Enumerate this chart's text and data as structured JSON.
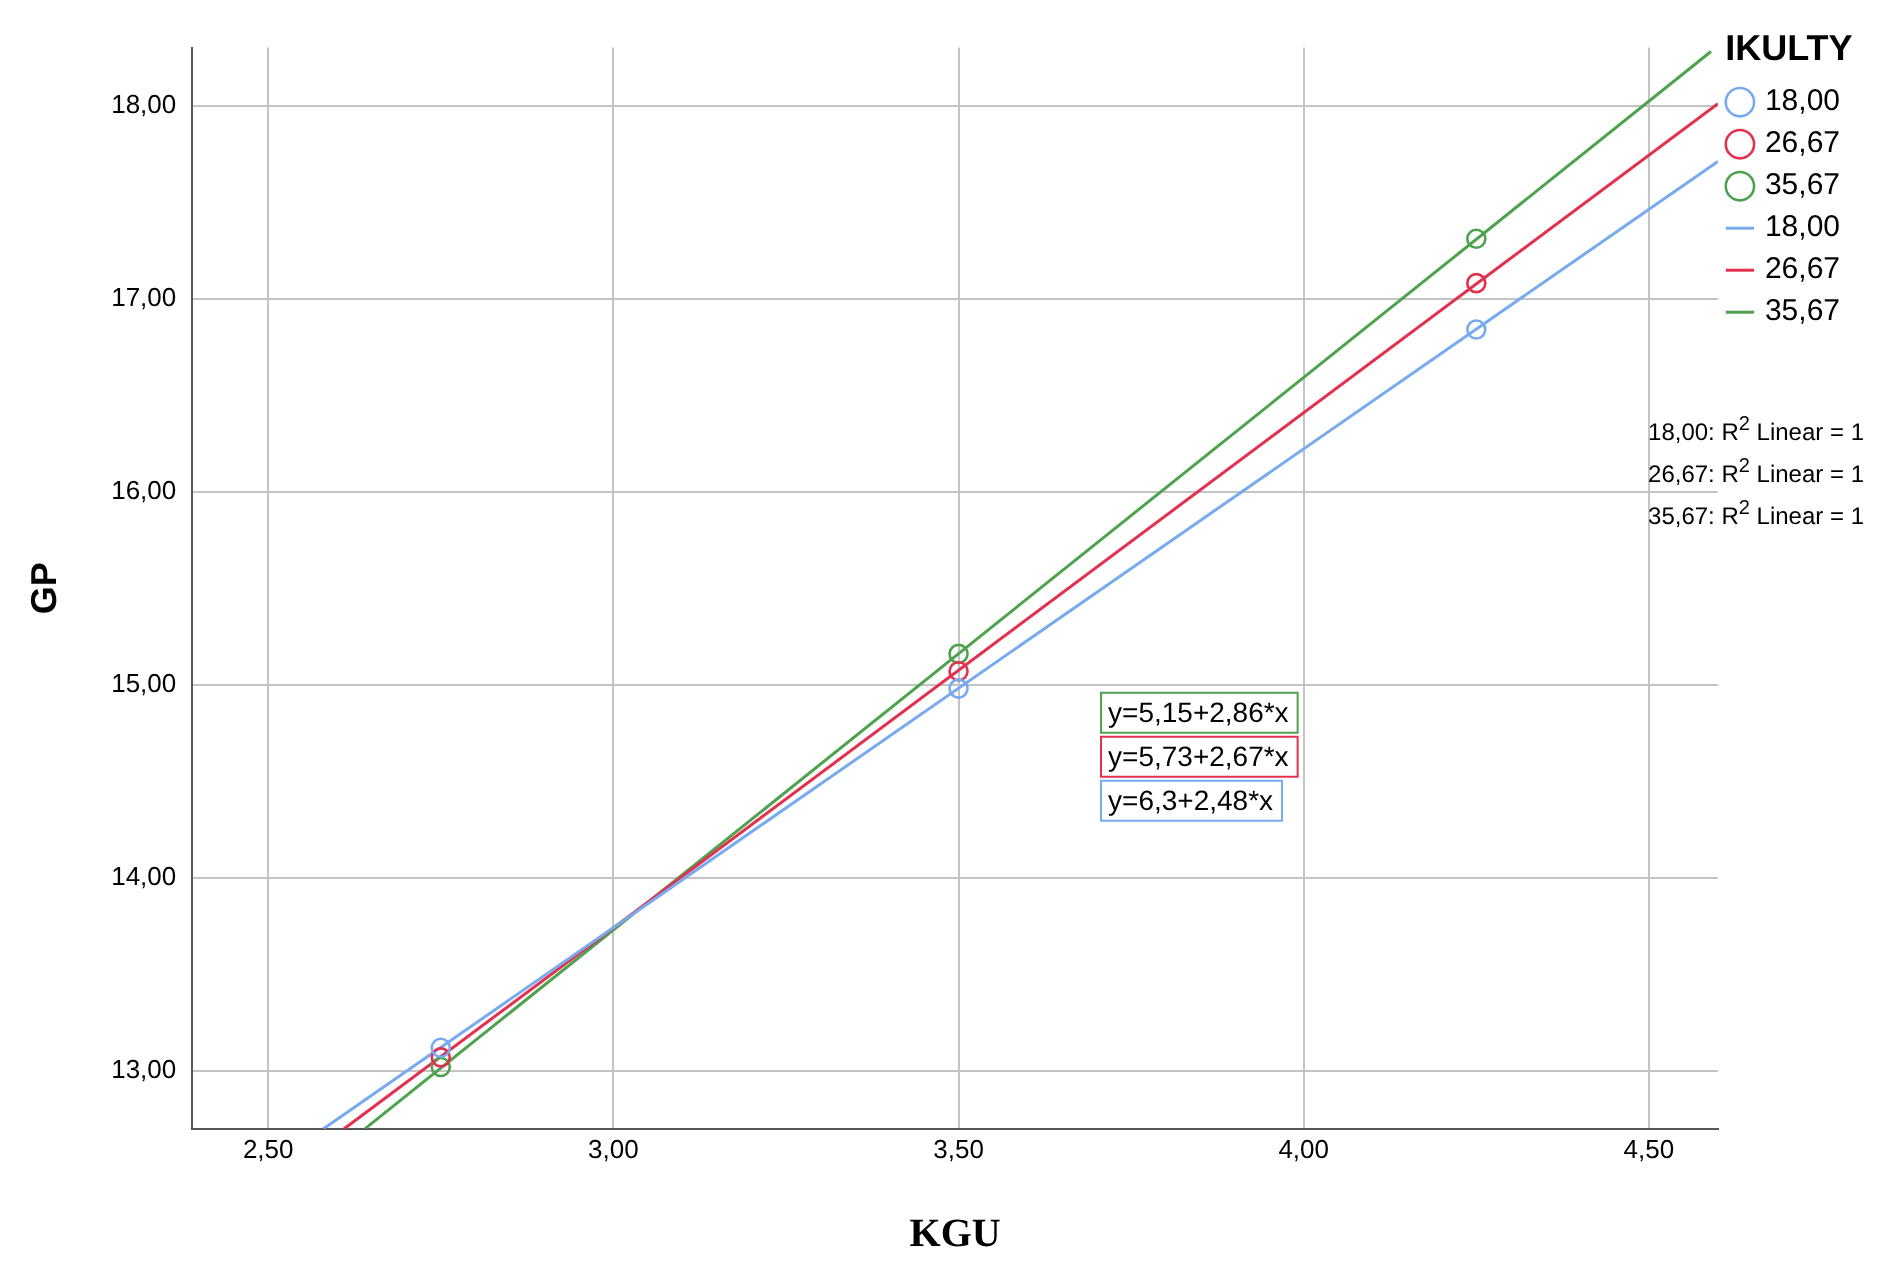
{
  "chart_data": {
    "type": "scatter",
    "xlabel": "KGU",
    "ylabel": "GP",
    "legend_title": "IKULTY",
    "xlim": [
      2.39,
      4.6
    ],
    "ylim": [
      12.7,
      18.3
    ],
    "xticks": [
      {
        "value": 2.5,
        "label": "2,50"
      },
      {
        "value": 3,
        "label": "3,00"
      },
      {
        "value": 3.5,
        "label": "3,50"
      },
      {
        "value": 4,
        "label": "4,00"
      },
      {
        "value": 4.5,
        "label": "4,50"
      }
    ],
    "yticks": [
      {
        "value": 13,
        "label": "13,00"
      },
      {
        "value": 14,
        "label": "14,00"
      },
      {
        "value": 15,
        "label": "15,00"
      },
      {
        "value": 16,
        "label": "16,00"
      },
      {
        "value": 17,
        "label": "17,00"
      },
      {
        "value": 18,
        "label": "18,00"
      }
    ],
    "grid": true,
    "legend": "right",
    "marker": "circle",
    "series": [
      {
        "name": "18,00",
        "color": "#78aaf0",
        "x": [
          2.75,
          3.5,
          4.25
        ],
        "values": [
          13.12,
          14.98,
          16.84
        ]
      },
      {
        "name": "26,67",
        "color": "#e3304f",
        "x": [
          2.75,
          3.5,
          4.25
        ],
        "values": [
          13.07,
          15.07,
          17.08
        ]
      },
      {
        "name": "35,67",
        "color": "#4ea24e",
        "x": [
          2.75,
          3.5,
          4.25
        ],
        "values": [
          13.02,
          15.16,
          17.31
        ]
      },
      {
        "name": "18,00",
        "type": "line",
        "marker": "none",
        "color": "#78aaf0",
        "x": [
          2.58,
          4.6
        ],
        "values": [
          12.7,
          17.71
        ]
      },
      {
        "name": "26,67",
        "type": "line",
        "marker": "none",
        "color": "#e3304f",
        "x": [
          2.61,
          4.6
        ],
        "values": [
          12.7,
          18.01
        ]
      },
      {
        "name": "35,67",
        "type": "line",
        "marker": "none",
        "color": "#4ea24e",
        "x": [
          2.64,
          4.59
        ],
        "values": [
          12.7,
          18.28
        ]
      }
    ],
    "annotations": [
      "y=6,3+2,48*x",
      "y=5,73+2,67*x",
      "y=5,15+2,86*x",
      "18,00: R$^{2}$ Linear = 1",
      "26,67: R$^{2}$ Linear = 1",
      "35,67: R$^{2}$ Linear = 1"
    ]
  }
}
